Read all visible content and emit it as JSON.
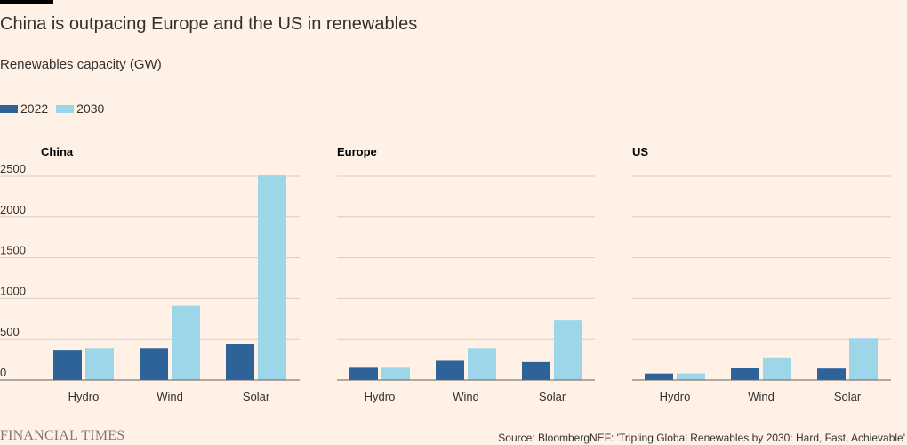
{
  "header": {
    "title": "China is outpacing Europe and the US in renewables",
    "subtitle": "Renewables capacity (GW)"
  },
  "legend": [
    {
      "label": "2022",
      "color": "#2e6399"
    },
    {
      "label": "2030",
      "color": "#9dd6e8"
    }
  ],
  "footer": {
    "logo": "FINANCIAL TIMES",
    "source": "Source: BloombergNEF: 'Tripling Global Renewables by 2030: Hard, Fast, Achievable'"
  },
  "chart_data": [
    {
      "type": "bar",
      "panel_label": "China",
      "categories": [
        "Hydro",
        "Wind",
        "Solar"
      ],
      "series": [
        {
          "name": "2022",
          "values": [
            370,
            390,
            440
          ]
        },
        {
          "name": "2030",
          "values": [
            390,
            910,
            2510
          ]
        }
      ],
      "ylim": [
        0,
        2500
      ],
      "yticks": [
        0,
        500,
        1000,
        1500,
        2000,
        2500
      ],
      "grid": true
    },
    {
      "type": "bar",
      "panel_label": "Europe",
      "categories": [
        "Hydro",
        "Wind",
        "Solar"
      ],
      "series": [
        {
          "name": "2022",
          "values": [
            160,
            235,
            220
          ]
        },
        {
          "name": "2030",
          "values": [
            160,
            390,
            730
          ]
        }
      ],
      "ylim": [
        0,
        2500
      ],
      "yticks": [
        0,
        500,
        1000,
        1500,
        2000,
        2500
      ],
      "grid": true
    },
    {
      "type": "bar",
      "panel_label": "US",
      "categories": [
        "Hydro",
        "Wind",
        "Solar"
      ],
      "series": [
        {
          "name": "2022",
          "values": [
            80,
            145,
            140
          ]
        },
        {
          "name": "2030",
          "values": [
            80,
            275,
            510
          ]
        }
      ],
      "ylim": [
        0,
        2500
      ],
      "yticks": [
        0,
        500,
        1000,
        1500,
        2000,
        2500
      ],
      "grid": true
    }
  ]
}
